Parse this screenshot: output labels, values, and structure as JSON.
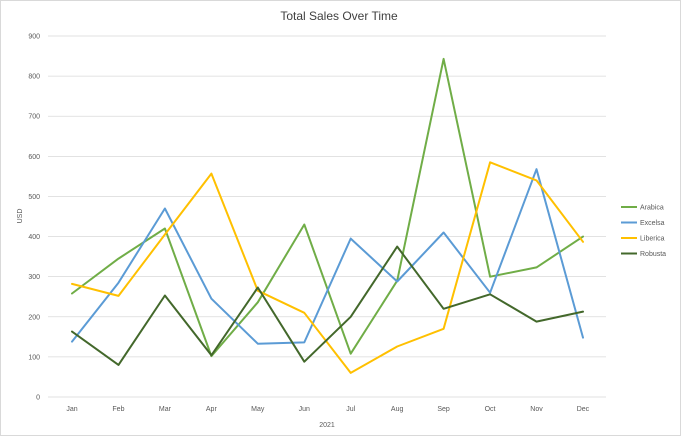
{
  "chart_data": {
    "type": "line",
    "title": "Total Sales Over Time",
    "xlabel": "2021",
    "ylabel": "USD",
    "ylim": [
      0,
      900
    ],
    "yticks": [
      0,
      100,
      200,
      300,
      400,
      500,
      600,
      700,
      800,
      900
    ],
    "grid": true,
    "legend_position": "right",
    "categories": [
      "Jan",
      "Feb",
      "Mar",
      "Apr",
      "May",
      "Jun",
      "Jul",
      "Aug",
      "Sep",
      "Oct",
      "Nov",
      "Dec"
    ],
    "series": [
      {
        "name": "Arabica",
        "color": "#70ad47",
        "values": [
          258,
          345,
          420,
          102,
          236,
          430,
          108,
          290,
          843,
          300,
          323,
          400
        ]
      },
      {
        "name": "Excelsa",
        "color": "#5b9bd5",
        "values": [
          138,
          285,
          470,
          245,
          133,
          136,
          395,
          288,
          410,
          260,
          568,
          148
        ]
      },
      {
        "name": "Liberica",
        "color": "#ffc000",
        "values": [
          282,
          252,
          405,
          557,
          265,
          210,
          60,
          126,
          170,
          585,
          540,
          387
        ]
      },
      {
        "name": "Robusta",
        "color": "#43682b",
        "values": [
          163,
          80,
          253,
          104,
          273,
          88,
          200,
          375,
          220,
          256,
          188,
          213
        ]
      }
    ]
  }
}
